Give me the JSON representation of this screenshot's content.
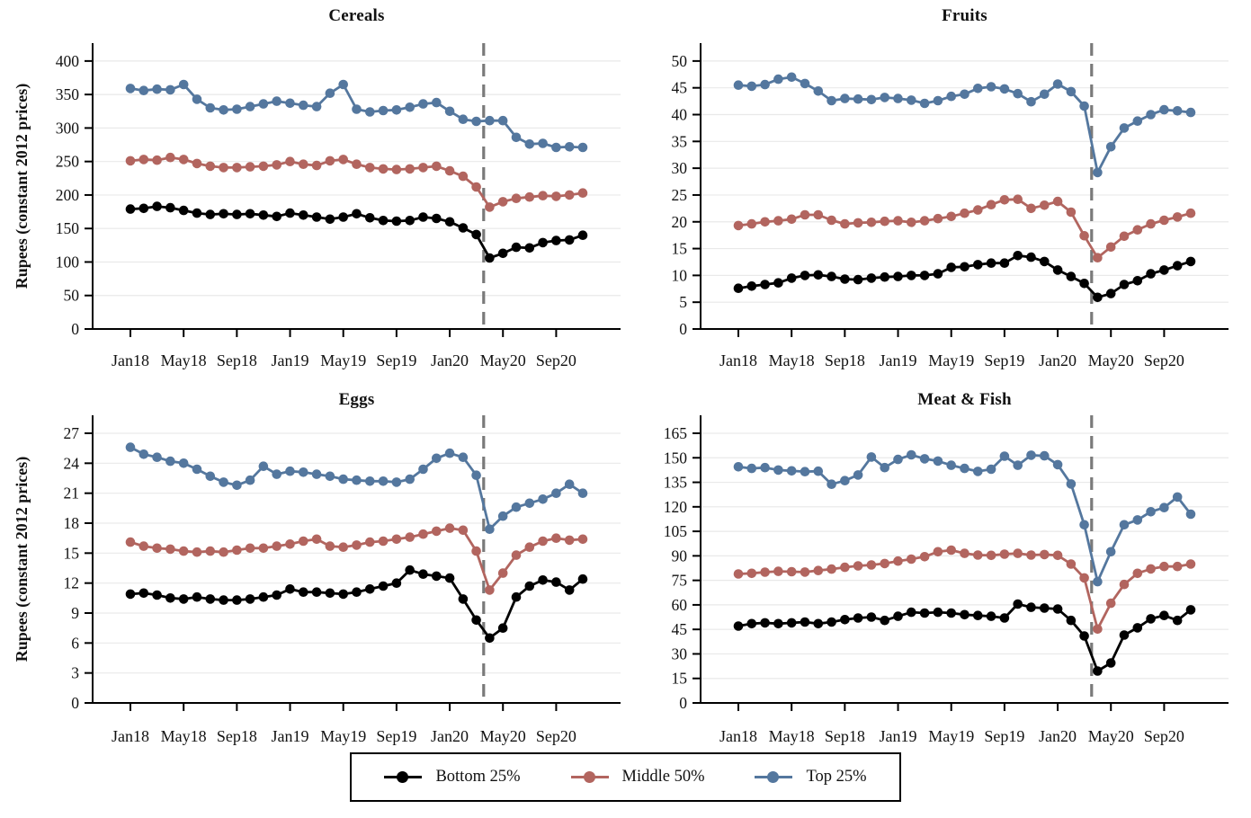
{
  "styles": {
    "background": "#ffffff",
    "grid_color": "#e9e9e9",
    "axis_color": "#000000",
    "vline_color": "#7a7a7a",
    "text_color": "#111111",
    "bottom25_color": "#000000",
    "middle50_color": "#b2655f",
    "top25_color": "#54779e"
  },
  "legend": {
    "position": "bottom-center",
    "items": [
      {
        "label": "Bottom 25%",
        "color": "#000000"
      },
      {
        "label": "Middle 50%",
        "color": "#b2655f"
      },
      {
        "label": "Top 25%",
        "color": "#54779e"
      }
    ]
  },
  "chart_data": [
    {
      "type": "line",
      "title": "Cereals",
      "ylabel": "Rupees (constant 2012 prices)",
      "xlabel": "",
      "ylim": [
        0,
        400
      ],
      "ytick_step": 50,
      "grid": true,
      "x_tick_labels": [
        "Jan18",
        "May18",
        "Sep18",
        "Jan19",
        "May19",
        "Sep19",
        "Jan20",
        "May20",
        "Sep20"
      ],
      "x": [
        "Jan18",
        "Feb18",
        "Mar18",
        "Apr18",
        "May18",
        "Jun18",
        "Jul18",
        "Aug18",
        "Sep18",
        "Oct18",
        "Nov18",
        "Dec18",
        "Jan19",
        "Feb19",
        "Mar19",
        "Apr19",
        "May19",
        "Jun19",
        "Jul19",
        "Aug19",
        "Sep19",
        "Oct19",
        "Nov19",
        "Dec19",
        "Jan20",
        "Feb20",
        "Mar20",
        "Apr20",
        "May20",
        "Jun20",
        "Jul20",
        "Aug20",
        "Sep20",
        "Oct20",
        "Nov20"
      ],
      "vline": {
        "style": "dashed",
        "between": [
          "Mar20",
          "Apr20"
        ],
        "color": "#7a7a7a"
      },
      "series": [
        {
          "name": "Bottom 25%",
          "color": "#000000",
          "values": [
            179,
            180,
            183,
            181,
            177,
            173,
            171,
            172,
            171,
            172,
            170,
            168,
            173,
            170,
            167,
            164,
            167,
            172,
            166,
            162,
            161,
            162,
            167,
            165,
            160,
            151,
            141,
            106,
            113,
            122,
            121,
            129,
            132,
            133,
            140
          ]
        },
        {
          "name": "Middle 50%",
          "color": "#b2655f",
          "values": [
            251,
            253,
            252,
            256,
            253,
            247,
            243,
            241,
            241,
            242,
            243,
            245,
            250,
            246,
            244,
            251,
            253,
            246,
            241,
            239,
            238,
            239,
            241,
            243,
            236,
            228,
            212,
            182,
            190,
            195,
            197,
            199,
            198,
            200,
            203
          ]
        },
        {
          "name": "Top 25%",
          "color": "#54779e",
          "values": [
            359,
            356,
            358,
            357,
            365,
            343,
            330,
            327,
            328,
            332,
            336,
            340,
            337,
            334,
            332,
            352,
            365,
            328,
            324,
            326,
            327,
            331,
            336,
            338,
            325,
            313,
            310,
            311,
            311,
            286,
            276,
            277,
            271,
            272,
            271
          ]
        }
      ]
    },
    {
      "type": "line",
      "title": "Fruits",
      "ylabel": "",
      "xlabel": "",
      "ylim": [
        0,
        50
      ],
      "ytick_step": 5,
      "grid": true,
      "x_tick_labels": [
        "Jan18",
        "May18",
        "Sep18",
        "Jan19",
        "May19",
        "Sep19",
        "Jan20",
        "May20",
        "Sep20"
      ],
      "x": [
        "Jan18",
        "Feb18",
        "Mar18",
        "Apr18",
        "May18",
        "Jun18",
        "Jul18",
        "Aug18",
        "Sep18",
        "Oct18",
        "Nov18",
        "Dec18",
        "Jan19",
        "Feb19",
        "Mar19",
        "Apr19",
        "May19",
        "Jun19",
        "Jul19",
        "Aug19",
        "Sep19",
        "Oct19",
        "Nov19",
        "Dec19",
        "Jan20",
        "Feb20",
        "Mar20",
        "Apr20",
        "May20",
        "Jun20",
        "Jul20",
        "Aug20",
        "Sep20",
        "Oct20",
        "Nov20"
      ],
      "vline": {
        "style": "dashed",
        "between": [
          "Mar20",
          "Apr20"
        ],
        "color": "#7a7a7a"
      },
      "series": [
        {
          "name": "Bottom 25%",
          "color": "#000000",
          "values": [
            7.6,
            8.0,
            8.3,
            8.6,
            9.5,
            10.0,
            10.1,
            9.8,
            9.3,
            9.2,
            9.5,
            9.7,
            9.8,
            10.0,
            10.0,
            10.3,
            11.5,
            11.6,
            12.0,
            12.3,
            12.3,
            13.7,
            13.4,
            12.6,
            11.0,
            9.8,
            8.5,
            5.9,
            6.6,
            8.3,
            9.0,
            10.3,
            11.0,
            11.8,
            12.6
          ]
        },
        {
          "name": "Middle 50%",
          "color": "#b2655f",
          "values": [
            19.3,
            19.6,
            20.0,
            20.2,
            20.5,
            21.3,
            21.3,
            20.3,
            19.6,
            19.8,
            19.9,
            20.1,
            20.2,
            19.9,
            20.2,
            20.6,
            21.0,
            21.6,
            22.2,
            23.2,
            24.1,
            24.2,
            22.5,
            23.1,
            23.8,
            21.8,
            17.4,
            13.3,
            15.3,
            17.3,
            18.5,
            19.6,
            20.3,
            20.9,
            21.6
          ]
        },
        {
          "name": "Top 25%",
          "color": "#54779e",
          "values": [
            45.5,
            45.3,
            45.6,
            46.6,
            47.0,
            45.8,
            44.4,
            42.6,
            43.0,
            42.9,
            42.8,
            43.2,
            43.0,
            42.7,
            42.1,
            42.6,
            43.4,
            43.8,
            44.9,
            45.2,
            44.8,
            43.9,
            42.4,
            43.8,
            45.7,
            44.3,
            41.6,
            29.2,
            34.0,
            37.5,
            38.8,
            40.0,
            40.9,
            40.7,
            40.4
          ]
        }
      ]
    },
    {
      "type": "line",
      "title": "Eggs",
      "ylabel": "Rupees (constant 2012 prices)",
      "xlabel": "",
      "ylim": [
        0,
        27
      ],
      "ytick_step": 3,
      "grid": true,
      "x_tick_labels": [
        "Jan18",
        "May18",
        "Sep18",
        "Jan19",
        "May19",
        "Sep19",
        "Jan20",
        "May20",
        "Sep20"
      ],
      "x": [
        "Jan18",
        "Feb18",
        "Mar18",
        "Apr18",
        "May18",
        "Jun18",
        "Jul18",
        "Aug18",
        "Sep18",
        "Oct18",
        "Nov18",
        "Dec18",
        "Jan19",
        "Feb19",
        "Mar19",
        "Apr19",
        "May19",
        "Jun19",
        "Jul19",
        "Aug19",
        "Sep19",
        "Oct19",
        "Nov19",
        "Dec19",
        "Jan20",
        "Feb20",
        "Mar20",
        "Apr20",
        "May20",
        "Jun20",
        "Jul20",
        "Aug20",
        "Sep20",
        "Oct20",
        "Nov20"
      ],
      "vline": {
        "style": "dashed",
        "between": [
          "Mar20",
          "Apr20"
        ],
        "color": "#7a7a7a"
      },
      "series": [
        {
          "name": "Bottom 25%",
          "color": "#000000",
          "values": [
            10.9,
            11.0,
            10.8,
            10.5,
            10.4,
            10.6,
            10.4,
            10.3,
            10.3,
            10.4,
            10.6,
            10.8,
            11.4,
            11.1,
            11.1,
            11.0,
            10.9,
            11.1,
            11.4,
            11.7,
            12.0,
            13.3,
            12.9,
            12.7,
            12.5,
            10.4,
            8.3,
            6.5,
            7.5,
            10.6,
            11.7,
            12.3,
            12.1,
            11.3,
            12.4
          ]
        },
        {
          "name": "Middle 50%",
          "color": "#b2655f",
          "values": [
            16.1,
            15.7,
            15.5,
            15.4,
            15.2,
            15.1,
            15.2,
            15.1,
            15.3,
            15.5,
            15.5,
            15.7,
            15.9,
            16.2,
            16.4,
            15.7,
            15.6,
            15.8,
            16.1,
            16.2,
            16.4,
            16.6,
            16.9,
            17.2,
            17.5,
            17.3,
            15.2,
            11.3,
            13.0,
            14.8,
            15.6,
            16.2,
            16.5,
            16.3,
            16.4
          ]
        },
        {
          "name": "Top 25%",
          "color": "#54779e",
          "values": [
            25.6,
            24.9,
            24.6,
            24.2,
            24.0,
            23.4,
            22.7,
            22.1,
            21.8,
            22.3,
            23.7,
            22.9,
            23.2,
            23.1,
            22.9,
            22.7,
            22.4,
            22.3,
            22.2,
            22.2,
            22.1,
            22.4,
            23.4,
            24.5,
            25.0,
            24.6,
            22.8,
            17.4,
            18.7,
            19.6,
            20.0,
            20.4,
            21.0,
            21.9,
            21.0
          ]
        }
      ]
    },
    {
      "type": "line",
      "title": "Meat & Fish",
      "ylabel": "",
      "xlabel": "",
      "ylim": [
        0,
        165
      ],
      "ytick_step": 15,
      "grid": true,
      "x_tick_labels": [
        "Jan18",
        "May18",
        "Sep18",
        "Jan19",
        "May19",
        "Sep19",
        "Jan20",
        "May20",
        "Sep20"
      ],
      "x": [
        "Jan18",
        "Feb18",
        "Mar18",
        "Apr18",
        "May18",
        "Jun18",
        "Jul18",
        "Aug18",
        "Sep18",
        "Oct18",
        "Nov18",
        "Dec18",
        "Jan19",
        "Feb19",
        "Mar19",
        "Apr19",
        "May19",
        "Jun19",
        "Jul19",
        "Aug19",
        "Sep19",
        "Oct19",
        "Nov19",
        "Dec19",
        "Jan20",
        "Feb20",
        "Mar20",
        "Apr20",
        "May20",
        "Jun20",
        "Jul20",
        "Aug20",
        "Sep20",
        "Oct20",
        "Nov20"
      ],
      "vline": {
        "style": "dashed",
        "between": [
          "Mar20",
          "Apr20"
        ],
        "color": "#7a7a7a"
      },
      "series": [
        {
          "name": "Bottom 25%",
          "color": "#000000",
          "values": [
            47.0,
            48.5,
            49.0,
            48.5,
            49.0,
            49.5,
            48.5,
            49.5,
            51.0,
            52.0,
            52.5,
            50.5,
            53.0,
            55.5,
            55.0,
            55.5,
            55.0,
            54.0,
            53.5,
            53.0,
            52.0,
            60.5,
            58.5,
            58.0,
            57.5,
            50.5,
            41.0,
            19.5,
            24.5,
            41.5,
            46.0,
            51.5,
            53.5,
            50.5,
            57.0
          ]
        },
        {
          "name": "Middle 50%",
          "color": "#b2655f",
          "values": [
            78.9,
            79.3,
            80.0,
            80.5,
            80.3,
            80.1,
            81.0,
            81.9,
            83.0,
            83.9,
            84.4,
            85.3,
            86.8,
            88.0,
            89.5,
            92.5,
            93.5,
            91.5,
            90.5,
            90.3,
            91.0,
            91.5,
            90.5,
            90.8,
            90.3,
            85.0,
            76.5,
            45.2,
            61.0,
            72.5,
            79.3,
            82.0,
            83.5,
            83.5,
            85.0
          ]
        },
        {
          "name": "Top 25%",
          "color": "#54779e",
          "values": [
            144.5,
            143.5,
            144.0,
            142.5,
            142.0,
            141.5,
            141.8,
            133.8,
            136.0,
            139.5,
            150.5,
            144.0,
            149.0,
            151.8,
            149.4,
            148.0,
            145.4,
            143.5,
            141.7,
            143.0,
            151.0,
            145.4,
            151.6,
            151.2,
            145.8,
            134.0,
            109.0,
            74.2,
            92.5,
            109.0,
            112.0,
            117.0,
            119.5,
            126.0,
            115.5
          ]
        }
      ]
    }
  ]
}
